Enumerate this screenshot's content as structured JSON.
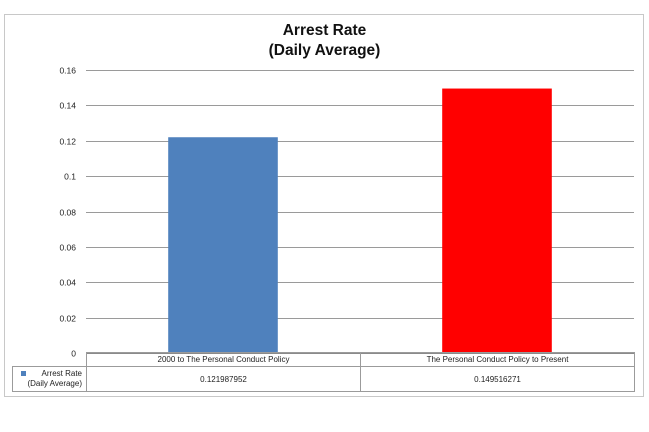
{
  "chart_data": {
    "type": "bar",
    "title_line1": "Arrest Rate",
    "title_line2": "(Daily Average)",
    "categories": [
      "2000 to The Personal Conduct Policy",
      "The Personal Conduct Policy to Present"
    ],
    "series": [
      {
        "name": "Arrest Rate\n(Daily Average)",
        "values": [
          0.121987952,
          0.149516271
        ],
        "value_labels": [
          "0.121987952",
          "0.149516271"
        ],
        "colors": [
          "#4f81bd",
          "#ff0000"
        ]
      }
    ],
    "ylim": [
      0,
      0.16
    ],
    "yticks": [
      0,
      0.02,
      0.04,
      0.06,
      0.08,
      0.1,
      0.12,
      0.14,
      0.16
    ],
    "ytick_labels": [
      "0",
      "0.02",
      "0.04",
      "0.06",
      "0.08",
      "0.1",
      "0.12",
      "0.14",
      "0.16"
    ],
    "grid": true,
    "legend": "data-table-bottom",
    "xlabel": "",
    "ylabel": ""
  }
}
